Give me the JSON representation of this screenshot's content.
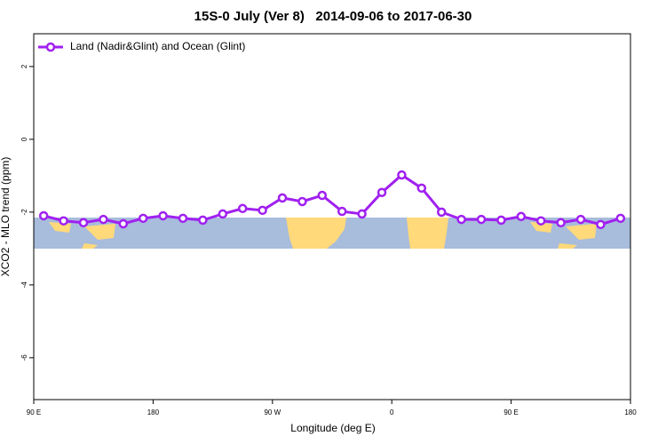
{
  "chart_data": {
    "type": "line",
    "title": "15S-0 July (Ver 8)   2014-09-06 to 2017-06-30",
    "x_label": "Longitude (deg E)",
    "y_label": "XCO2 - MLO trend (ppm)",
    "x": [
      97.5,
      112.5,
      127.5,
      142.5,
      157.5,
      172.5,
      187.5,
      202.5,
      217.5,
      232.5,
      247.5,
      262.5,
      277.5,
      292.5,
      307.5,
      322.5,
      337.5,
      352.5,
      367.5,
      382.5,
      397.5,
      412.5,
      427.5,
      442.5,
      457.5,
      472.5,
      487.5,
      502.5,
      517.5,
      532.5
    ],
    "series": [
      {
        "name": "Land (Nadir&Glint) and Ocean (Glint)",
        "color": "#a020f0",
        "values": [
          -2.1,
          -2.24,
          -2.29,
          -2.2,
          -2.32,
          -2.17,
          -2.1,
          -2.17,
          -2.22,
          -2.05,
          -1.9,
          -1.95,
          -1.61,
          -1.71,
          -1.54,
          -1.98,
          -2.05,
          -1.46,
          -0.98,
          -1.34,
          -2.0,
          -2.2,
          -2.2,
          -2.22,
          -2.12,
          -2.24,
          -2.29,
          -2.2,
          -2.34,
          -2.17
        ]
      }
    ],
    "xlim": [
      90,
      540
    ],
    "xticks": [
      {
        "value": 90,
        "label": "90 E"
      },
      180,
      {
        "value": 270,
        "label": "90 W"
      },
      {
        "value": 360,
        "label": "0"
      },
      {
        "value": 450,
        "label": "90 E"
      },
      {
        "value": 540,
        "label": "180"
      }
    ],
    "ylim": [
      -7.15,
      2.9
    ],
    "yticks": [
      -6,
      -4,
      -2,
      0,
      2
    ],
    "legend": "top-left"
  }
}
